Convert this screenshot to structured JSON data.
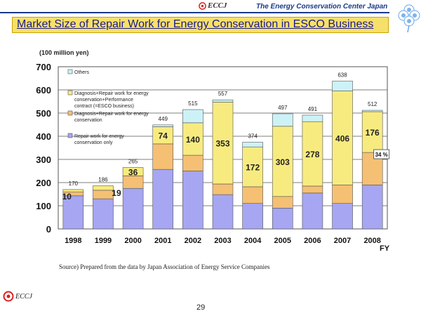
{
  "header": {
    "logo_text": "ECCJ",
    "org_name": "The Energy Conservation Center Japan"
  },
  "title": "Market Size of Repair Work for Energy Conservation in ESCO Business",
  "unit_label": "(100 million yen)",
  "source_note": "Source) Prepared from the data by Japan Association of Energy Service Companies",
  "footer": {
    "logo_text": "ECCJ",
    "page_number": "29"
  },
  "colors": {
    "repair_only": "#a6a6f2",
    "diag_repair": "#f5c073",
    "esco": "#f7eb80",
    "others": "#ccf2f7",
    "title_bg": "#f7e06a",
    "title_text": "#1a1a8c",
    "header_text": "#1a3a8a",
    "logo_red": "#d92020"
  },
  "chart_data": {
    "type": "bar",
    "stacked": true,
    "title": "Market Size of Repair Work for Energy Conservation in ESCO Business",
    "ylabel": "(100 million yen)",
    "xlabel": "FY",
    "ylim": [
      0,
      700
    ],
    "yticks": [
      0,
      100,
      200,
      300,
      400,
      500,
      600,
      700
    ],
    "grid": true,
    "categories": [
      "1998",
      "1999",
      "2000",
      "2001",
      "2002",
      "2003",
      "2004",
      "2005",
      "2006",
      "2007",
      "2008"
    ],
    "series": [
      {
        "name": "Repair work for energy conservation only",
        "key": "repair_only",
        "values": [
          143,
          130,
          175,
          257,
          250,
          148,
          110,
          90,
          155,
          110,
          190
        ]
      },
      {
        "name": "Diagnosis+Repair work for energy conservation",
        "key": "diag_repair",
        "values": [
          17,
          37,
          54,
          110,
          68,
          46,
          72,
          50,
          30,
          80,
          140
        ]
      },
      {
        "name": "Diagnosis+Repair work for energy conservation+Performance contract (=ESCO business)",
        "key": "esco",
        "values": [
          10,
          19,
          36,
          74,
          140,
          353,
          172,
          303,
          278,
          406,
          176
        ]
      },
      {
        "name": "Others",
        "key": "others",
        "values": [
          0,
          0,
          0,
          8,
          57,
          10,
          20,
          54,
          28,
          42,
          6
        ]
      }
    ],
    "totals": [
      170,
      186,
      265,
      449,
      515,
      557,
      374,
      497,
      491,
      638,
      512
    ],
    "segment_labels": [
      "10",
      "19",
      "36",
      "74",
      "140",
      "353",
      "172",
      "303",
      "278",
      "406",
      "176"
    ],
    "annotation": "34 %",
    "legend": [
      "Others",
      "Diagnosis+Repair work for energy conservation+Performance contract (=ESCO business)",
      "Diagnosis+Repair work for energy conservation",
      "Repair work for energy conservation only"
    ],
    "legend_placement": "top-left"
  }
}
